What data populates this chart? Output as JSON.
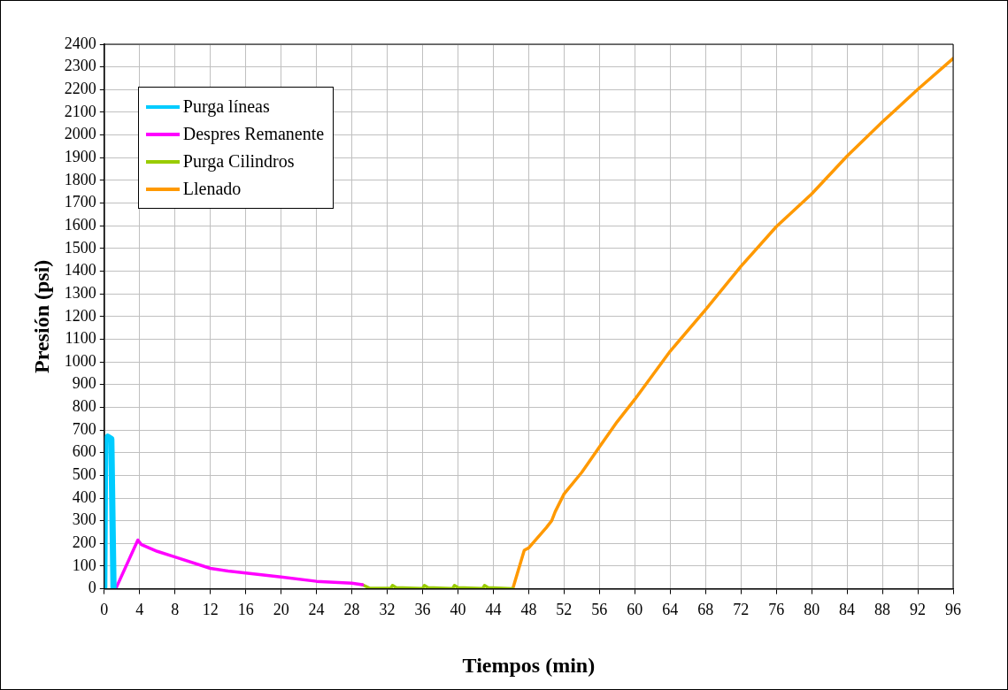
{
  "chart_data": {
    "type": "line",
    "xlabel": "Tiempos (min)",
    "ylabel": "Presión (psi)",
    "xlim": [
      0,
      96
    ],
    "xticks": [
      0,
      4,
      8,
      12,
      16,
      20,
      24,
      28,
      32,
      36,
      40,
      44,
      48,
      52,
      56,
      60,
      64,
      68,
      72,
      76,
      80,
      84,
      88,
      92,
      96
    ],
    "ylim": [
      0,
      2400
    ],
    "yticks": [
      0,
      100,
      200,
      300,
      400,
      500,
      600,
      700,
      800,
      900,
      1000,
      1100,
      1200,
      1300,
      1400,
      1500,
      1600,
      1700,
      1800,
      1900,
      2000,
      2100,
      2200,
      2300,
      2400
    ],
    "grid": true,
    "legend": "top left",
    "marker": "none",
    "line_style": "solid",
    "series": [
      {
        "name": "Purga líneas",
        "color": "#00ccff",
        "x": [
          0,
          0.1,
          0.4,
          0.8,
          1.05
        ],
        "values": [
          0,
          650,
          670,
          660,
          0
        ]
      },
      {
        "name": "Despres Remanente",
        "color": "#ff00ff",
        "x": [
          1.3,
          3.8,
          4.2,
          6,
          8,
          12,
          14,
          16,
          20,
          24,
          28,
          29.2
        ],
        "values": [
          0,
          215,
          195,
          165,
          140,
          90,
          78,
          70,
          52,
          33,
          25,
          18
        ]
      },
      {
        "name": "Purga Cilindros",
        "color": "#99cc00",
        "x": [
          29.2,
          30,
          32.4,
          32.6,
          33,
          36,
          36.2,
          36.6,
          39.4,
          39.6,
          40,
          42.8,
          43,
          43.4,
          46.2
        ],
        "values": [
          18,
          3,
          2,
          15,
          5,
          1,
          15,
          5,
          1,
          15,
          5,
          1,
          15,
          5,
          0
        ]
      },
      {
        "name": "Llenado",
        "color": "#ff9900",
        "x": [
          46.2,
          47.5,
          48,
          50,
          50.6,
          51,
          52,
          54,
          56,
          58,
          60,
          64,
          68,
          72,
          76,
          80,
          84,
          88,
          92,
          96
        ],
        "values": [
          0,
          170,
          180,
          270,
          300,
          340,
          418,
          513,
          625,
          736,
          835,
          1047,
          1230,
          1421,
          1596,
          1740,
          1907,
          2058,
          2201,
          2337
        ]
      }
    ]
  }
}
